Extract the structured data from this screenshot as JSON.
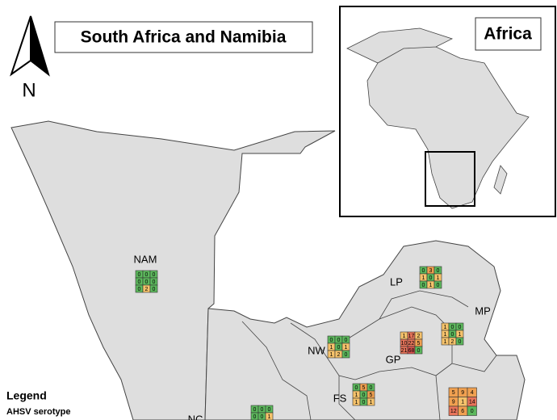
{
  "title": "South Africa and Namibia",
  "inset_title": "Africa",
  "north_label": "N",
  "legend": {
    "title": "Legend",
    "subtitle": "AHSV serotype"
  },
  "regions": [
    {
      "label": "NAM",
      "grid": [
        [
          0,
          0,
          0
        ],
        [
          0,
          0,
          0
        ],
        [
          0,
          2,
          0
        ]
      ]
    },
    {
      "label": "LP",
      "grid": [
        [
          0,
          3,
          0
        ],
        [
          1,
          0,
          1
        ],
        [
          0,
          1,
          0
        ]
      ]
    },
    {
      "label": "MP",
      "grid": [
        [
          1,
          0,
          0
        ],
        [
          1,
          0,
          1
        ],
        [
          1,
          2,
          0
        ]
      ]
    },
    {
      "label": "NW",
      "grid": [
        [
          0,
          0,
          0
        ],
        [
          1,
          0,
          1
        ],
        [
          1,
          2,
          0
        ]
      ]
    },
    {
      "label": "GP",
      "grid": [
        [
          1,
          17,
          2
        ],
        [
          10,
          22,
          5
        ],
        [
          21,
          68,
          0
        ]
      ]
    },
    {
      "label": "FS",
      "grid": [
        [
          0,
          5,
          0
        ],
        [
          1,
          0,
          5
        ],
        [
          1,
          0,
          1
        ]
      ]
    },
    {
      "grid": [
        [
          5,
          9,
          4
        ],
        [
          9,
          1,
          14
        ],
        [
          12,
          6,
          0
        ]
      ]
    },
    {
      "label": "NC",
      "grid": [
        [
          0,
          0,
          0
        ],
        [
          0,
          0,
          1
        ]
      ]
    }
  ]
}
